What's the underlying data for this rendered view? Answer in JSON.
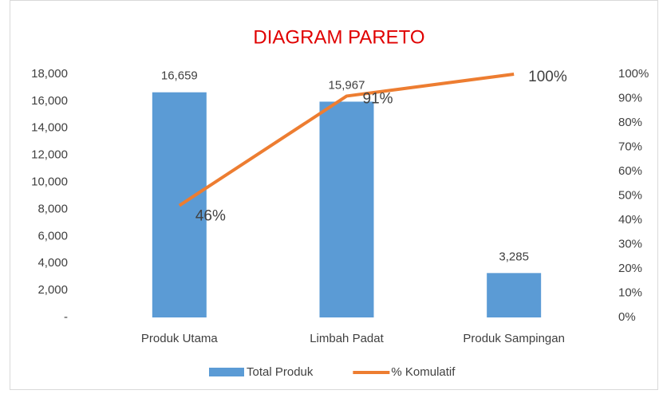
{
  "chart_data": {
    "type": "pareto",
    "title": "DIAGRAM PARETO",
    "categories": [
      "Produk Utama",
      "Limbah Padat",
      "Produk Sampingan"
    ],
    "series": [
      {
        "name": "Total Produk",
        "type": "bar",
        "color": "#5b9bd5",
        "values": [
          16659,
          15967,
          3285
        ],
        "value_labels": [
          "16,659",
          "15,967",
          "3,285"
        ]
      },
      {
        "name": "% Komulatif",
        "type": "line",
        "axis": "y2",
        "color": "#ed7d31",
        "values": [
          46,
          91,
          100
        ],
        "value_labels": [
          "46%",
          "91%",
          "100%"
        ]
      }
    ],
    "ylim": [
      0,
      18000
    ],
    "yticks": [
      {
        "value": 0,
        "label": "-"
      },
      {
        "value": 2000,
        "label": "2,000"
      },
      {
        "value": 4000,
        "label": "4,000"
      },
      {
        "value": 6000,
        "label": "6,000"
      },
      {
        "value": 8000,
        "label": "8,000"
      },
      {
        "value": 10000,
        "label": "10,000"
      },
      {
        "value": 12000,
        "label": "12,000"
      },
      {
        "value": 14000,
        "label": "14,000"
      },
      {
        "value": 16000,
        "label": "16,000"
      },
      {
        "value": 18000,
        "label": "18,000"
      }
    ],
    "y2lim": [
      0,
      100
    ],
    "y2ticks": [
      {
        "value": 0,
        "label": "0%"
      },
      {
        "value": 10,
        "label": "10%"
      },
      {
        "value": 20,
        "label": "20%"
      },
      {
        "value": 30,
        "label": "30%"
      },
      {
        "value": 40,
        "label": "40%"
      },
      {
        "value": 50,
        "label": "50%"
      },
      {
        "value": 60,
        "label": "60%"
      },
      {
        "value": 70,
        "label": "70%"
      },
      {
        "value": 80,
        "label": "80%"
      },
      {
        "value": 90,
        "label": "90%"
      },
      {
        "value": 100,
        "label": "100%"
      }
    ],
    "legend": "bottom",
    "title_color": "#e00000"
  }
}
